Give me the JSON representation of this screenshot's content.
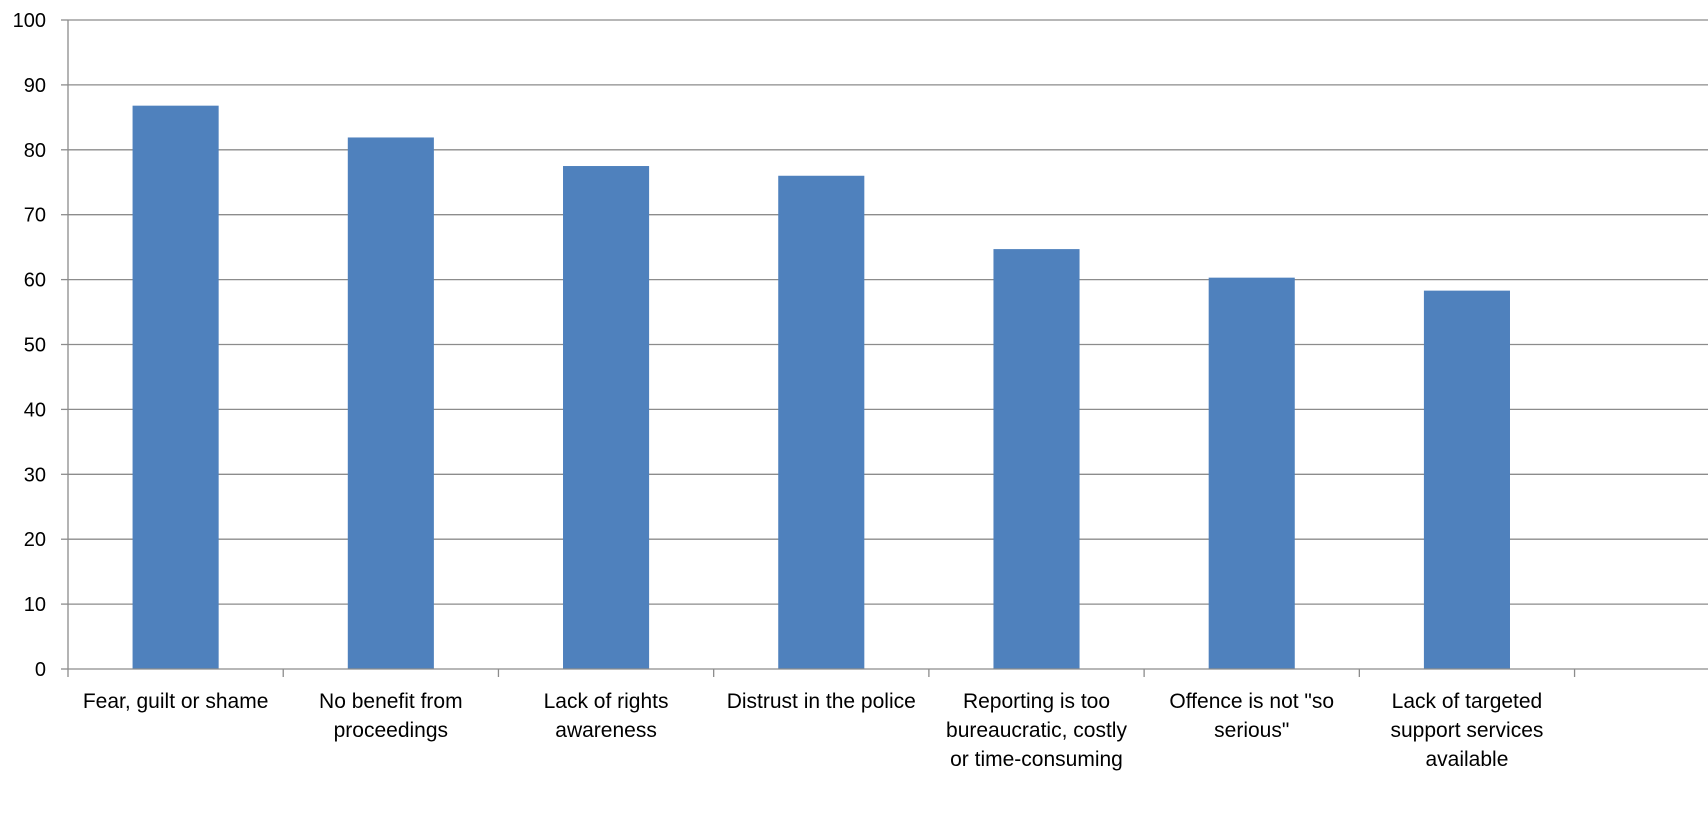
{
  "chart_data": {
    "type": "bar",
    "title": "",
    "xlabel": "",
    "ylabel": "",
    "ylim": [
      0,
      100
    ],
    "yticks": [
      "0",
      "10",
      "20",
      "30",
      "40",
      "50",
      "60",
      "70",
      "80",
      "90",
      "100"
    ],
    "grid": true,
    "legend": "none",
    "categories": [
      [
        "Fear, guilt or shame"
      ],
      [
        "No benefit from",
        "proceedings"
      ],
      [
        "Lack of rights",
        "awareness"
      ],
      [
        "Distrust in the police"
      ],
      [
        "Reporting is too",
        "bureaucratic, costly",
        "or time-consuming"
      ],
      [
        "Offence is not \"so",
        "serious\""
      ],
      [
        "Lack of targeted",
        "support services",
        "available"
      ]
    ],
    "values": [
      86.8,
      81.9,
      77.5,
      76.0,
      64.7,
      60.3,
      58.3
    ],
    "colors": {
      "bar": "#4f81bd",
      "grid": "#8c8c8c",
      "axis": "#8c8c8c"
    }
  }
}
